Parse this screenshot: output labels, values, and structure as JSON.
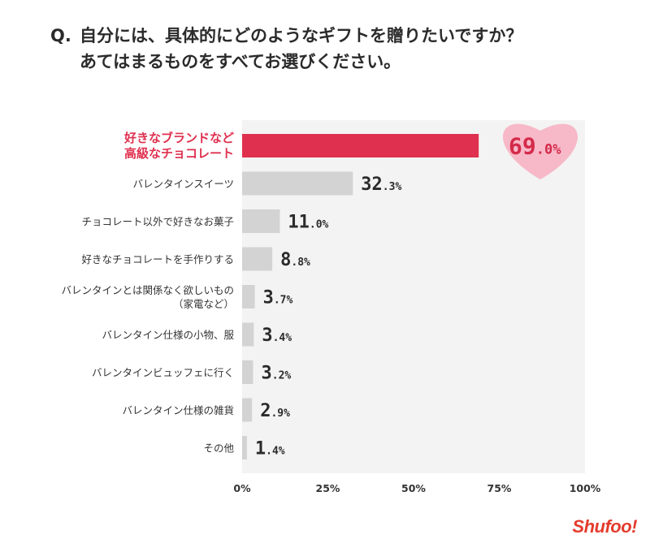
{
  "title": {
    "q": "Q.",
    "line1": "自分には、具体的にどのようなギフトを贈りたいですか？",
    "line2": "あてはまるものをすべてお選びください。"
  },
  "logo": "Shufoo!",
  "colors": {
    "highlight_bar": "#e0304f",
    "bar": "#d3d3d3",
    "plot_bg": "#f3f3f3",
    "heart": "#f7b8c8"
  },
  "chart_data": {
    "type": "bar",
    "orientation": "horizontal",
    "categories": [
      [
        "好きなブランドなど",
        "高級なチョコレート"
      ],
      [
        "バレンタインスイーツ"
      ],
      [
        "チョコレート以外で好きなお菓子"
      ],
      [
        "好きなチョコレートを手作りする"
      ],
      [
        "バレンタインとは関係なく欲しいもの",
        "（家電など）"
      ],
      [
        "バレンタイン仕様の小物、服"
      ],
      [
        "バレンタインビュッフェに行く"
      ],
      [
        "バレンタイン仕様の雑貨"
      ],
      [
        "その他"
      ]
    ],
    "values": [
      69.0,
      32.3,
      11.0,
      8.8,
      3.7,
      3.4,
      3.2,
      2.9,
      1.4
    ],
    "value_labels": [
      [
        "69",
        ".0%"
      ],
      [
        "32",
        ".3%"
      ],
      [
        "11",
        ".0%"
      ],
      [
        "8",
        ".8%"
      ],
      [
        "3",
        ".7%"
      ],
      [
        "3",
        ".4%"
      ],
      [
        "3",
        ".2%"
      ],
      [
        "2",
        ".9%"
      ],
      [
        "1",
        ".4%"
      ]
    ],
    "highlight_index": 0,
    "xlim": [
      0,
      100
    ],
    "xticks": [
      "0%",
      "25%",
      "50%",
      "75%",
      "100%"
    ],
    "title": "",
    "xlabel": "",
    "ylabel": ""
  }
}
